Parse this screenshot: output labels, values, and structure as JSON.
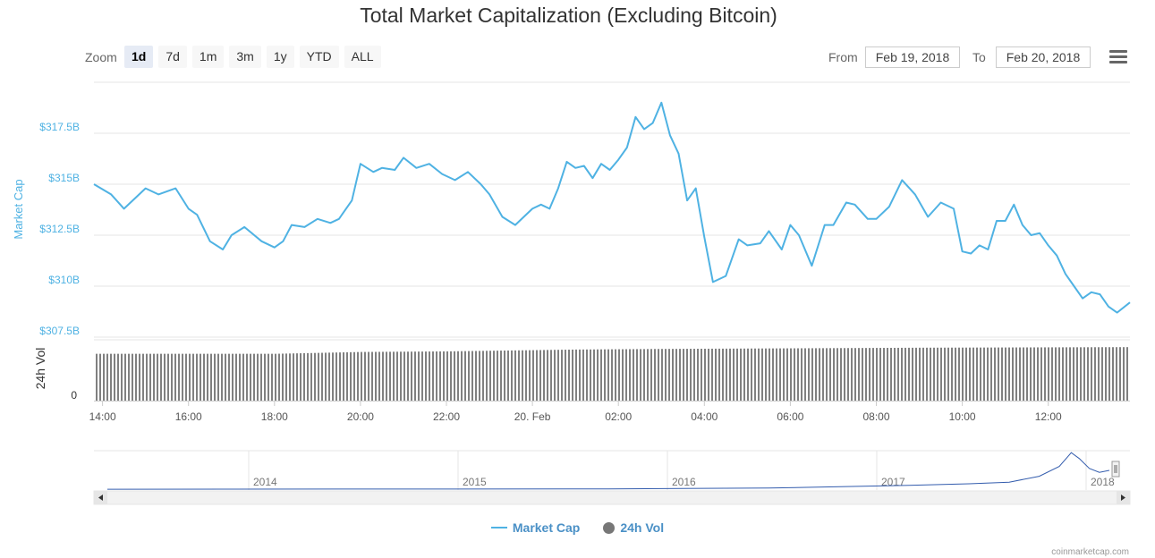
{
  "title": "Total Market Capitalization (Excluding Bitcoin)",
  "zoom": {
    "label": "Zoom",
    "buttons": [
      "1d",
      "7d",
      "1m",
      "3m",
      "1y",
      "YTD",
      "ALL"
    ],
    "active": "1d"
  },
  "range": {
    "from_label": "From",
    "from_value": "Feb 19, 2018",
    "to_label": "To",
    "to_value": "Feb 20, 2018"
  },
  "menu_icon": "hamburger-menu-icon",
  "legend": {
    "market_cap": "Market Cap",
    "volume": "24h Vol"
  },
  "credits": "coinmarketcap.com",
  "colors": {
    "market_cap_line": "#4fb2e3",
    "volume_bar": "#808080",
    "navigator_line": "#335cad"
  },
  "chart_data": {
    "type": "line",
    "title": "Total Market Capitalization (Excluding Bitcoin)",
    "x_ticks": [
      "14:00",
      "16:00",
      "18:00",
      "20:00",
      "22:00",
      "20. Feb",
      "02:00",
      "04:00",
      "06:00",
      "08:00",
      "10:00",
      "12:00"
    ],
    "x_start_hour": 13.8,
    "x_end_hour": 37.9,
    "market_cap": {
      "ylabel": "Market Cap",
      "y_ticks": [
        "$307.5B",
        "$310B",
        "$312.5B",
        "$315B",
        "$317.5B"
      ],
      "y_tick_values": [
        307.5,
        310,
        312.5,
        315,
        317.5
      ],
      "ylim": [
        307.5,
        320
      ],
      "series_hours": [
        13.8,
        14.2,
        14.5,
        15.0,
        15.3,
        15.7,
        16.0,
        16.2,
        16.5,
        16.8,
        17.0,
        17.3,
        17.7,
        18.0,
        18.2,
        18.4,
        18.7,
        19.0,
        19.3,
        19.5,
        19.8,
        20.0,
        20.3,
        20.5,
        20.8,
        21.0,
        21.3,
        21.6,
        21.9,
        22.2,
        22.5,
        22.8,
        23.0,
        23.3,
        23.6,
        24.0,
        24.2,
        24.4,
        24.6,
        24.8,
        25.0,
        25.2,
        25.4,
        25.6,
        25.8,
        26.0,
        26.2,
        26.4,
        26.6,
        26.8,
        27.0,
        27.2,
        27.4,
        27.6,
        27.8,
        28.0,
        28.2,
        28.5,
        28.8,
        29.0,
        29.3,
        29.5,
        29.8,
        30.0,
        30.2,
        30.5,
        30.8,
        31.0,
        31.3,
        31.5,
        31.8,
        32.0,
        32.3,
        32.6,
        32.9,
        33.2,
        33.5,
        33.8,
        34.0,
        34.2,
        34.4,
        34.6,
        34.8,
        35.0,
        35.2,
        35.4,
        35.6,
        35.8,
        36.0,
        36.2,
        36.4,
        36.6,
        36.8,
        37.0,
        37.2,
        37.4,
        37.6,
        37.9
      ],
      "values": [
        315.0,
        314.5,
        313.8,
        314.8,
        314.5,
        314.8,
        313.8,
        313.5,
        312.2,
        311.8,
        312.5,
        312.9,
        312.2,
        311.9,
        312.2,
        313.0,
        312.9,
        313.3,
        313.1,
        313.3,
        314.2,
        316.0,
        315.6,
        315.8,
        315.7,
        316.3,
        315.8,
        316.0,
        315.5,
        315.2,
        315.6,
        315.0,
        314.5,
        313.4,
        313.0,
        313.8,
        314.0,
        313.8,
        314.8,
        316.1,
        315.8,
        315.9,
        315.3,
        316.0,
        315.7,
        316.2,
        316.8,
        318.3,
        317.7,
        318.0,
        319.0,
        317.4,
        316.5,
        314.2,
        314.8,
        312.4,
        310.2,
        310.5,
        312.3,
        312.0,
        312.1,
        312.7,
        311.8,
        313.0,
        312.5,
        311.0,
        313.0,
        313.0,
        314.1,
        314.0,
        313.3,
        313.3,
        313.9,
        315.2,
        314.5,
        313.4,
        314.1,
        313.8,
        311.7,
        311.6,
        312.0,
        311.8,
        313.2,
        313.2,
        314.0,
        313.0,
        312.5,
        312.6,
        312.0,
        311.5,
        310.6,
        310.0,
        309.4,
        309.7,
        309.6,
        309.0,
        308.7,
        309.2
      ]
    },
    "volume": {
      "ylabel": "24h Vol",
      "y_ticks": [
        "0"
      ],
      "relative_levels": [
        [
          13.8,
          0.77
        ],
        [
          18.0,
          0.77
        ],
        [
          20.0,
          0.8
        ],
        [
          22.0,
          0.81
        ],
        [
          25.0,
          0.84
        ],
        [
          27.0,
          0.85
        ],
        [
          30.0,
          0.86
        ],
        [
          33.0,
          0.87
        ],
        [
          37.9,
          0.88
        ]
      ]
    },
    "navigator": {
      "year_labels": [
        "2014",
        "2015",
        "2016",
        "2017",
        "2018"
      ],
      "relative_levels": [
        [
          0,
          0.02
        ],
        [
          0.5,
          0.03
        ],
        [
          0.66,
          0.05
        ],
        [
          0.72,
          0.08
        ],
        [
          0.8,
          0.12
        ],
        [
          0.86,
          0.16
        ],
        [
          0.9,
          0.2
        ],
        [
          0.93,
          0.35
        ],
        [
          0.95,
          0.6
        ],
        [
          0.962,
          0.95
        ],
        [
          0.97,
          0.8
        ],
        [
          0.98,
          0.55
        ],
        [
          0.99,
          0.45
        ],
        [
          1.0,
          0.5
        ]
      ]
    }
  }
}
